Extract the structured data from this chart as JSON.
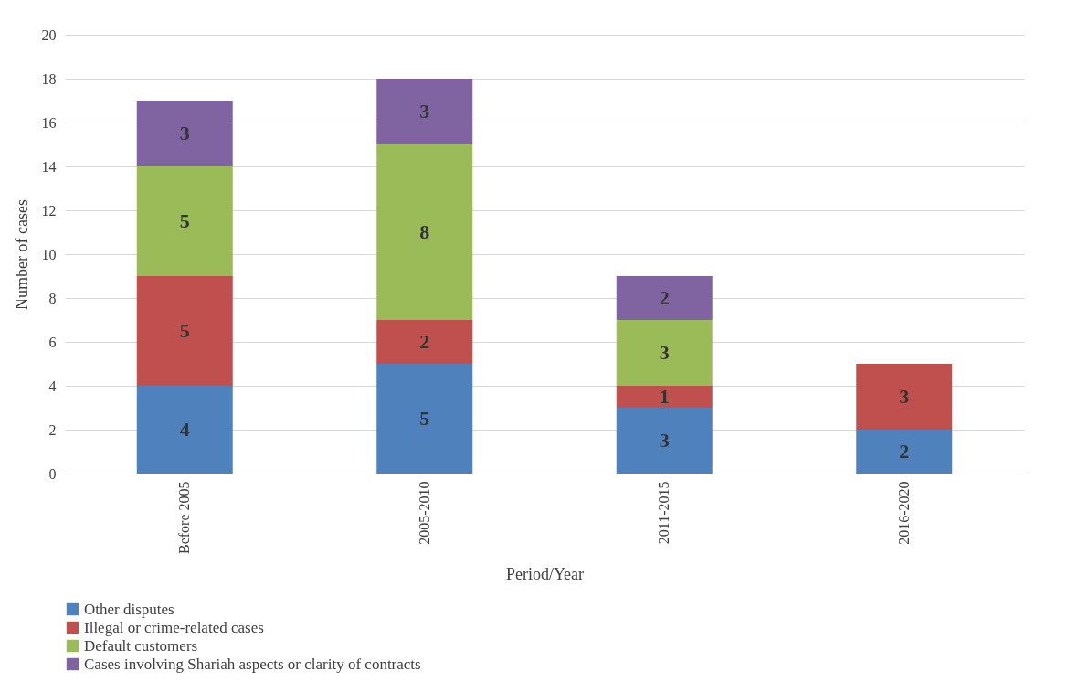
{
  "chart_data": {
    "type": "bar",
    "stacked": true,
    "xlabel": "Period/Year",
    "ylabel": "Number of cases",
    "categories": [
      "Before 2005",
      "2005-2010",
      "2011-2015",
      "2016-2020"
    ],
    "series": [
      {
        "name": "Other disputes",
        "color": "#4f81bd",
        "values": [
          4,
          5,
          3,
          2
        ]
      },
      {
        "name": "Illegal or crime-related cases",
        "color": "#c0504d",
        "values": [
          5,
          2,
          1,
          3
        ]
      },
      {
        "name": "Default customers",
        "color": "#9bbb59",
        "values": [
          5,
          8,
          3,
          null
        ]
      },
      {
        "name": "Cases involving Shariah aspects or clarity of contracts",
        "color": "#8064a2",
        "values": [
          3,
          3,
          2,
          null
        ]
      }
    ],
    "ylim": [
      0,
      20
    ],
    "yticks": [
      0,
      2,
      4,
      6,
      8,
      10,
      12,
      14,
      16,
      18,
      20
    ],
    "grid": "y",
    "legend": "bottom",
    "data_labels": true
  }
}
